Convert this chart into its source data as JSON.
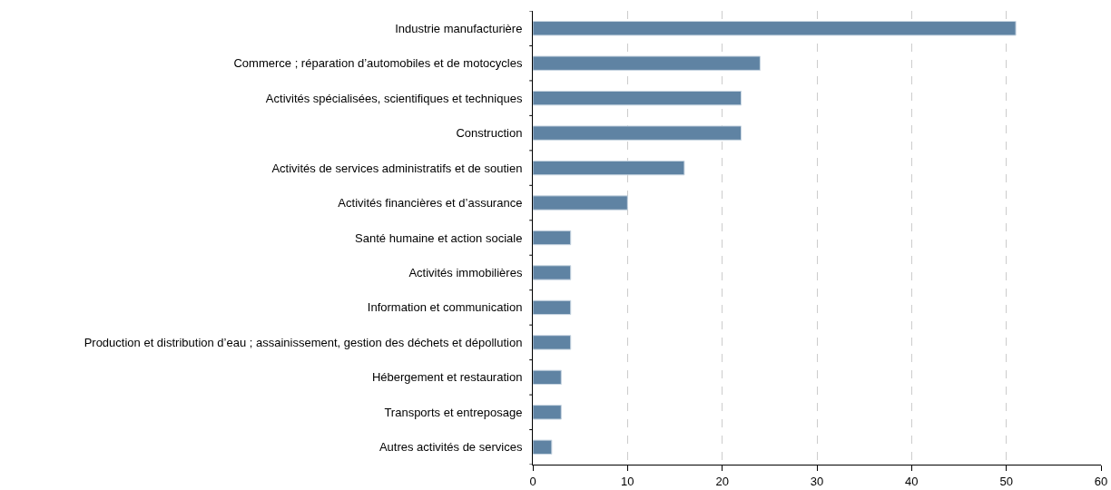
{
  "chart_data": {
    "type": "bar",
    "orientation": "horizontal",
    "categories": [
      "Industrie manufacturière",
      "Commerce ; réparation d’automobiles et de motocycles",
      "Activités spécialisées, scientifiques et techniques",
      "Construction",
      "Activités de services administratifs et de soutien",
      "Activités financières et d’assurance",
      "Santé humaine et action sociale",
      "Activités immobilières",
      "Information et communication",
      "Production et distribution d’eau ; assainissement, gestion des déchets et dépollution",
      "Hébergement et restauration",
      "Transports et entreposage",
      "Autres activités de services"
    ],
    "values": [
      51,
      24,
      22,
      22,
      16,
      10,
      4,
      4,
      4,
      4,
      3,
      3,
      2
    ],
    "color": "#5f83a3",
    "xlim": [
      0,
      60
    ],
    "xticks": [
      0,
      10,
      20,
      30,
      40,
      50,
      60
    ],
    "grid": "x",
    "legend": false
  }
}
